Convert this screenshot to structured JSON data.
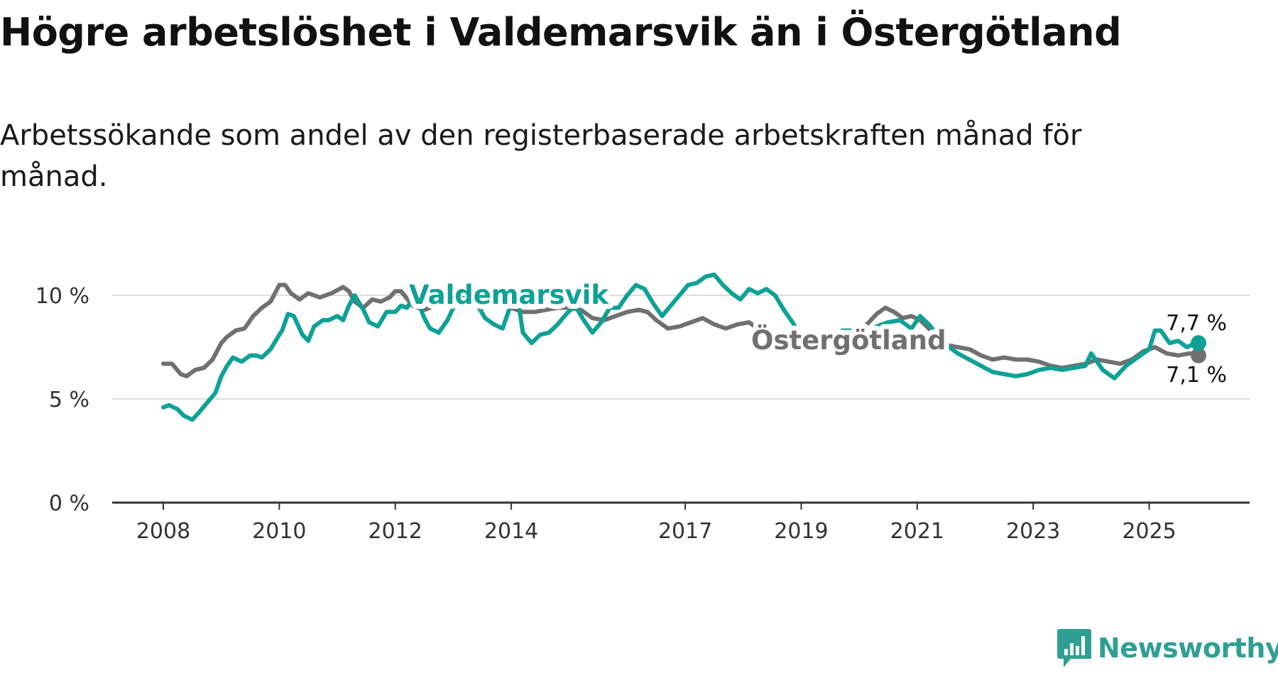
{
  "title": "Högre arbetslöshet i Valdemarsvik än i Östergötland",
  "subtitle": "Arbetssökande som andel av den registerbaserade arbetskraften månad för månad.",
  "brand": {
    "name": "Newsworthy",
    "icon": "newsworthy-logo-icon",
    "color": "#2f9f93"
  },
  "colors": {
    "valdemarsvik": "#0fa196",
    "ostergotland": "#707070",
    "grid": "#dddddd",
    "axis": "#333333"
  },
  "chart_data": {
    "type": "line",
    "title": "Högre arbetslöshet i Valdemarsvik än i Östergötland",
    "xlabel": "",
    "ylabel": "",
    "ylim": [
      0,
      11
    ],
    "xlim": [
      2008.0,
      2025.85
    ],
    "y_ticks": [
      {
        "value": 0,
        "label": "0 %"
      },
      {
        "value": 5,
        "label": "5 %"
      },
      {
        "value": 10,
        "label": "10 %"
      }
    ],
    "x_ticks": [
      {
        "value": 2008,
        "label": "2008"
      },
      {
        "value": 2010,
        "label": "2010"
      },
      {
        "value": 2012,
        "label": "2012"
      },
      {
        "value": 2014,
        "label": "2014"
      },
      {
        "value": 2017,
        "label": "2017"
      },
      {
        "value": 2019,
        "label": "2019"
      },
      {
        "value": 2021,
        "label": "2021"
      },
      {
        "value": 2023,
        "label": "2023"
      },
      {
        "value": 2025,
        "label": "2025"
      }
    ],
    "series": [
      {
        "name": "Östergötland",
        "label": "Östergötland",
        "end_label": "7,1 %",
        "x": [
          2008.0,
          2008.15,
          2008.3,
          2008.4,
          2008.55,
          2008.7,
          2008.85,
          2009.0,
          2009.1,
          2009.25,
          2009.4,
          2009.55,
          2009.7,
          2009.85,
          2010.0,
          2010.1,
          2010.2,
          2010.35,
          2010.5,
          2010.7,
          2010.9,
          2011.1,
          2011.2,
          2011.3,
          2011.45,
          2011.6,
          2011.75,
          2011.9,
          2012.0,
          2012.1,
          2012.3,
          2012.5,
          2012.7,
          2012.9,
          2013.1,
          2013.3,
          2013.5,
          2013.7,
          2013.9,
          2014.0,
          2014.2,
          2014.4,
          2014.6,
          2014.8,
          2015.0,
          2015.2,
          2015.4,
          2015.6,
          2015.8,
          2016.0,
          2016.2,
          2016.35,
          2016.5,
          2016.7,
          2016.9,
          2017.1,
          2017.3,
          2017.5,
          2017.7,
          2017.9,
          2018.1,
          2018.3,
          2018.5,
          2018.7,
          2018.9,
          2019.1,
          2019.3,
          2019.5,
          2019.7,
          2019.9,
          2020.1,
          2020.3,
          2020.45,
          2020.6,
          2020.75,
          2020.9,
          2021.05,
          2021.2,
          2021.35,
          2021.5,
          2021.7,
          2021.9,
          2022.1,
          2022.3,
          2022.5,
          2022.7,
          2022.9,
          2023.1,
          2023.3,
          2023.5,
          2023.7,
          2023.9,
          2024.1,
          2024.3,
          2024.5,
          2024.7,
          2024.9,
          2025.1,
          2025.3,
          2025.5,
          2025.7,
          2025.85
        ],
        "values": [
          6.7,
          6.7,
          6.2,
          6.1,
          6.4,
          6.5,
          6.9,
          7.7,
          8.0,
          8.3,
          8.4,
          9.0,
          9.4,
          9.7,
          10.5,
          10.5,
          10.1,
          9.8,
          10.1,
          9.9,
          10.1,
          10.4,
          10.2,
          9.7,
          9.4,
          9.8,
          9.7,
          9.9,
          10.2,
          10.2,
          9.5,
          9.3,
          9.5,
          9.7,
          9.8,
          9.7,
          9.4,
          9.6,
          9.5,
          9.4,
          9.2,
          9.2,
          9.3,
          9.4,
          9.4,
          9.3,
          8.9,
          8.8,
          9.0,
          9.2,
          9.3,
          9.2,
          8.8,
          8.4,
          8.5,
          8.7,
          8.9,
          8.6,
          8.4,
          8.6,
          8.7,
          8.3,
          7.9,
          7.7,
          7.5,
          7.4,
          7.6,
          7.8,
          8.0,
          8.2,
          8.5,
          9.1,
          9.4,
          9.2,
          8.9,
          9.0,
          8.8,
          8.4,
          8.0,
          7.6,
          7.5,
          7.4,
          7.1,
          6.9,
          7.0,
          6.9,
          6.9,
          6.8,
          6.6,
          6.5,
          6.6,
          6.7,
          6.9,
          6.8,
          6.7,
          6.9,
          7.3,
          7.5,
          7.2,
          7.1,
          7.2,
          7.1
        ]
      },
      {
        "name": "Valdemarsvik",
        "label": "Valdemarsvik",
        "end_label": "7,7 %",
        "x": [
          2008.0,
          2008.1,
          2008.25,
          2008.35,
          2008.5,
          2008.6,
          2008.75,
          2008.9,
          2009.0,
          2009.1,
          2009.2,
          2009.35,
          2009.5,
          2009.6,
          2009.7,
          2009.85,
          2010.0,
          2010.05,
          2010.15,
          2010.25,
          2010.4,
          2010.5,
          2010.6,
          2010.75,
          2010.85,
          2011.0,
          2011.1,
          2011.2,
          2011.3,
          2011.45,
          2011.55,
          2011.7,
          2011.85,
          2012.0,
          2012.1,
          2012.2,
          2012.35,
          2012.5,
          2012.6,
          2012.75,
          2012.9,
          2013.0,
          2013.1,
          2013.25,
          2013.4,
          2013.55,
          2013.7,
          2013.85,
          2014.0,
          2014.1,
          2014.2,
          2014.35,
          2014.5,
          2014.65,
          2014.8,
          2014.95,
          2015.1,
          2015.25,
          2015.4,
          2015.55,
          2015.7,
          2015.85,
          2016.0,
          2016.15,
          2016.3,
          2016.45,
          2016.6,
          2016.75,
          2016.9,
          2017.05,
          2017.2,
          2017.35,
          2017.5,
          2017.65,
          2017.8,
          2017.95,
          2018.1,
          2018.25,
          2018.4,
          2018.55,
          2018.7,
          2018.85,
          2019.0,
          2019.15,
          2019.3,
          2019.5,
          2019.7,
          2019.9,
          2020.1,
          2020.3,
          2020.5,
          2020.7,
          2020.9,
          2021.05,
          2021.2,
          2021.35,
          2021.5,
          2021.7,
          2021.9,
          2022.1,
          2022.3,
          2022.5,
          2022.7,
          2022.9,
          2023.1,
          2023.3,
          2023.5,
          2023.7,
          2023.9,
          2024.0,
          2024.2,
          2024.4,
          2024.6,
          2024.8,
          2025.0,
          2025.1,
          2025.2,
          2025.35,
          2025.5,
          2025.65,
          2025.8,
          2025.85
        ],
        "values": [
          4.6,
          4.7,
          4.5,
          4.2,
          4.0,
          4.3,
          4.8,
          5.3,
          6.1,
          6.6,
          7.0,
          6.8,
          7.1,
          7.1,
          7.0,
          7.4,
          8.1,
          8.3,
          9.1,
          9.0,
          8.1,
          7.8,
          8.5,
          8.8,
          8.8,
          9.0,
          8.8,
          9.5,
          10.0,
          9.3,
          8.7,
          8.5,
          9.2,
          9.2,
          9.5,
          9.4,
          10.0,
          8.9,
          8.4,
          8.2,
          8.8,
          9.4,
          9.8,
          10.1,
          9.6,
          8.9,
          8.6,
          8.4,
          9.6,
          10.1,
          8.2,
          7.7,
          8.1,
          8.2,
          8.6,
          9.1,
          9.5,
          8.8,
          8.2,
          8.7,
          9.4,
          9.4,
          10.0,
          10.5,
          10.3,
          9.6,
          9.0,
          9.5,
          10.0,
          10.5,
          10.6,
          10.9,
          11.0,
          10.5,
          10.1,
          9.8,
          10.3,
          10.1,
          10.3,
          10.0,
          9.3,
          8.7,
          8.0,
          7.6,
          7.6,
          7.8,
          8.3,
          8.3,
          8.2,
          8.5,
          8.7,
          8.8,
          8.4,
          9.0,
          8.6,
          8.1,
          7.6,
          7.2,
          6.9,
          6.6,
          6.3,
          6.2,
          6.1,
          6.2,
          6.4,
          6.5,
          6.4,
          6.5,
          6.6,
          7.2,
          6.4,
          6.0,
          6.6,
          7.0,
          7.4,
          8.3,
          8.3,
          7.7,
          7.8,
          7.5,
          7.7,
          7.7
        ]
      }
    ]
  }
}
